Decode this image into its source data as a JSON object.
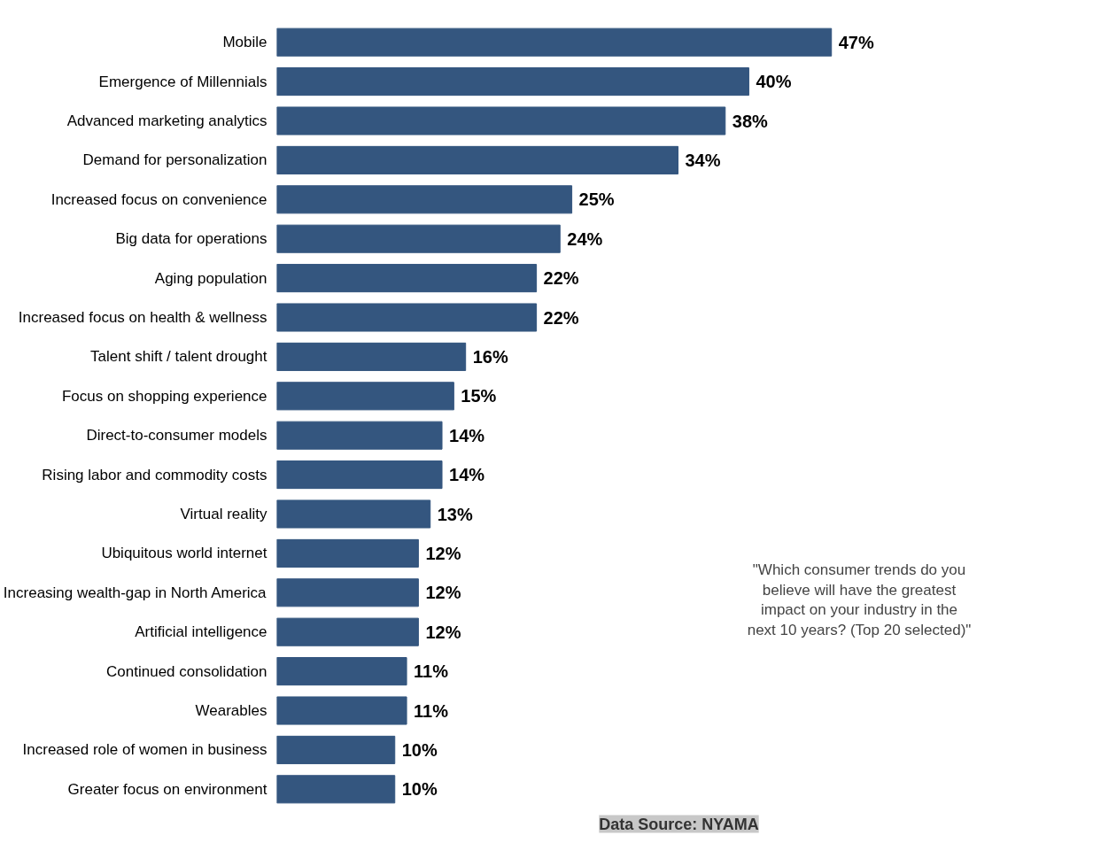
{
  "chart_data": {
    "type": "bar",
    "orientation": "horizontal",
    "data_labels": true,
    "grid": false,
    "categories": [
      "Mobile",
      "Emergence of Millennials",
      "Advanced marketing analytics",
      "Demand for personalization",
      "Increased focus on convenience",
      "Big data for operations",
      "Aging population",
      "Increased focus on health & wellness",
      "Talent shift / talent drought",
      "Focus on shopping experience",
      "Direct-to-consumer models",
      "Rising labor and commodity costs",
      "Virtual reality",
      "Ubiquitous world internet",
      "Increasing wealth-gap in North America",
      "Artificial intelligence",
      "Continued consolidation",
      "Wearables",
      "Increased role of women in business",
      "Greater focus on environment"
    ],
    "values": [
      47,
      40,
      38,
      34,
      25,
      24,
      22,
      22,
      16,
      15,
      14,
      14,
      13,
      12,
      12,
      12,
      11,
      11,
      10,
      10
    ],
    "value_labels": [
      "47%",
      "40%",
      "38%",
      "34%",
      "25%",
      "24%",
      "22%",
      "22%",
      "16%",
      "15%",
      "14%",
      "14%",
      "13%",
      "12%",
      "12%",
      "12%",
      "11%",
      "11%",
      "10%",
      "10%"
    ],
    "color": "#34567f",
    "annotations": [
      "\"Which consumer trends do you believe will have the greatest impact on your industry in the next 10 years? (Top 20 selected)\"",
      "Data Source: NYAMA"
    ]
  }
}
